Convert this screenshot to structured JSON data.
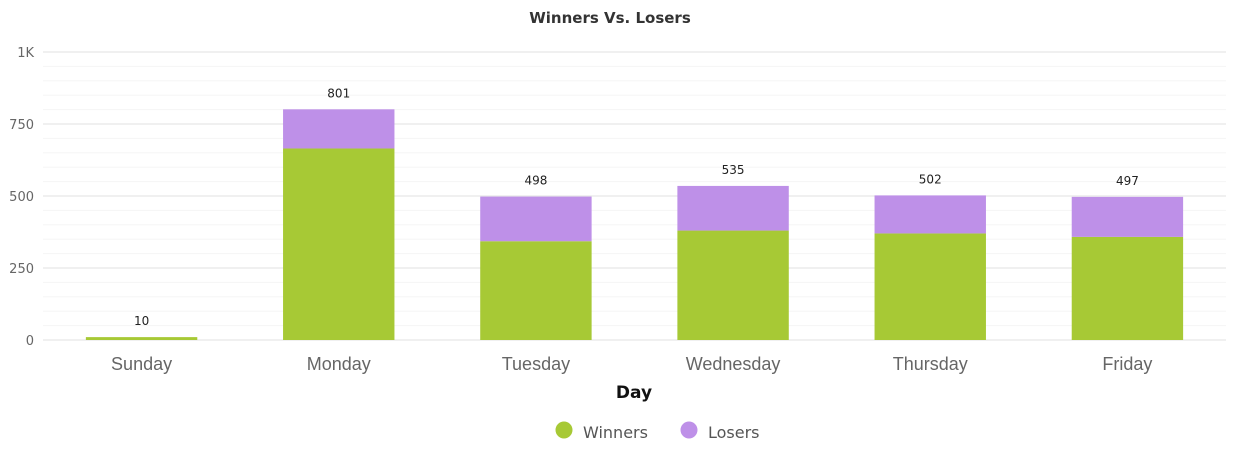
{
  "chart_data": {
    "type": "bar",
    "stacked": true,
    "title": "Winners Vs. Losers",
    "xlabel": "Day",
    "ylabel": "",
    "ylim": [
      0,
      1000
    ],
    "yticks": [
      0,
      250,
      500,
      750,
      1000
    ],
    "ytick_labels": [
      "0",
      "250",
      "500",
      "750",
      "1K"
    ],
    "grid": true,
    "legend_position": "bottom-center",
    "categories": [
      "Sunday",
      "Monday",
      "Tuesday",
      "Wednesday",
      "Thursday",
      "Friday"
    ],
    "series": [
      {
        "name": "Winners",
        "color": "#a7c935",
        "values": [
          10,
          665,
          343,
          380,
          370,
          358
        ]
      },
      {
        "name": "Losers",
        "color": "#be90e8",
        "values": [
          0,
          136,
          155,
          155,
          132,
          139
        ]
      }
    ],
    "totals": [
      10,
      801,
      498,
      535,
      502,
      497
    ]
  }
}
